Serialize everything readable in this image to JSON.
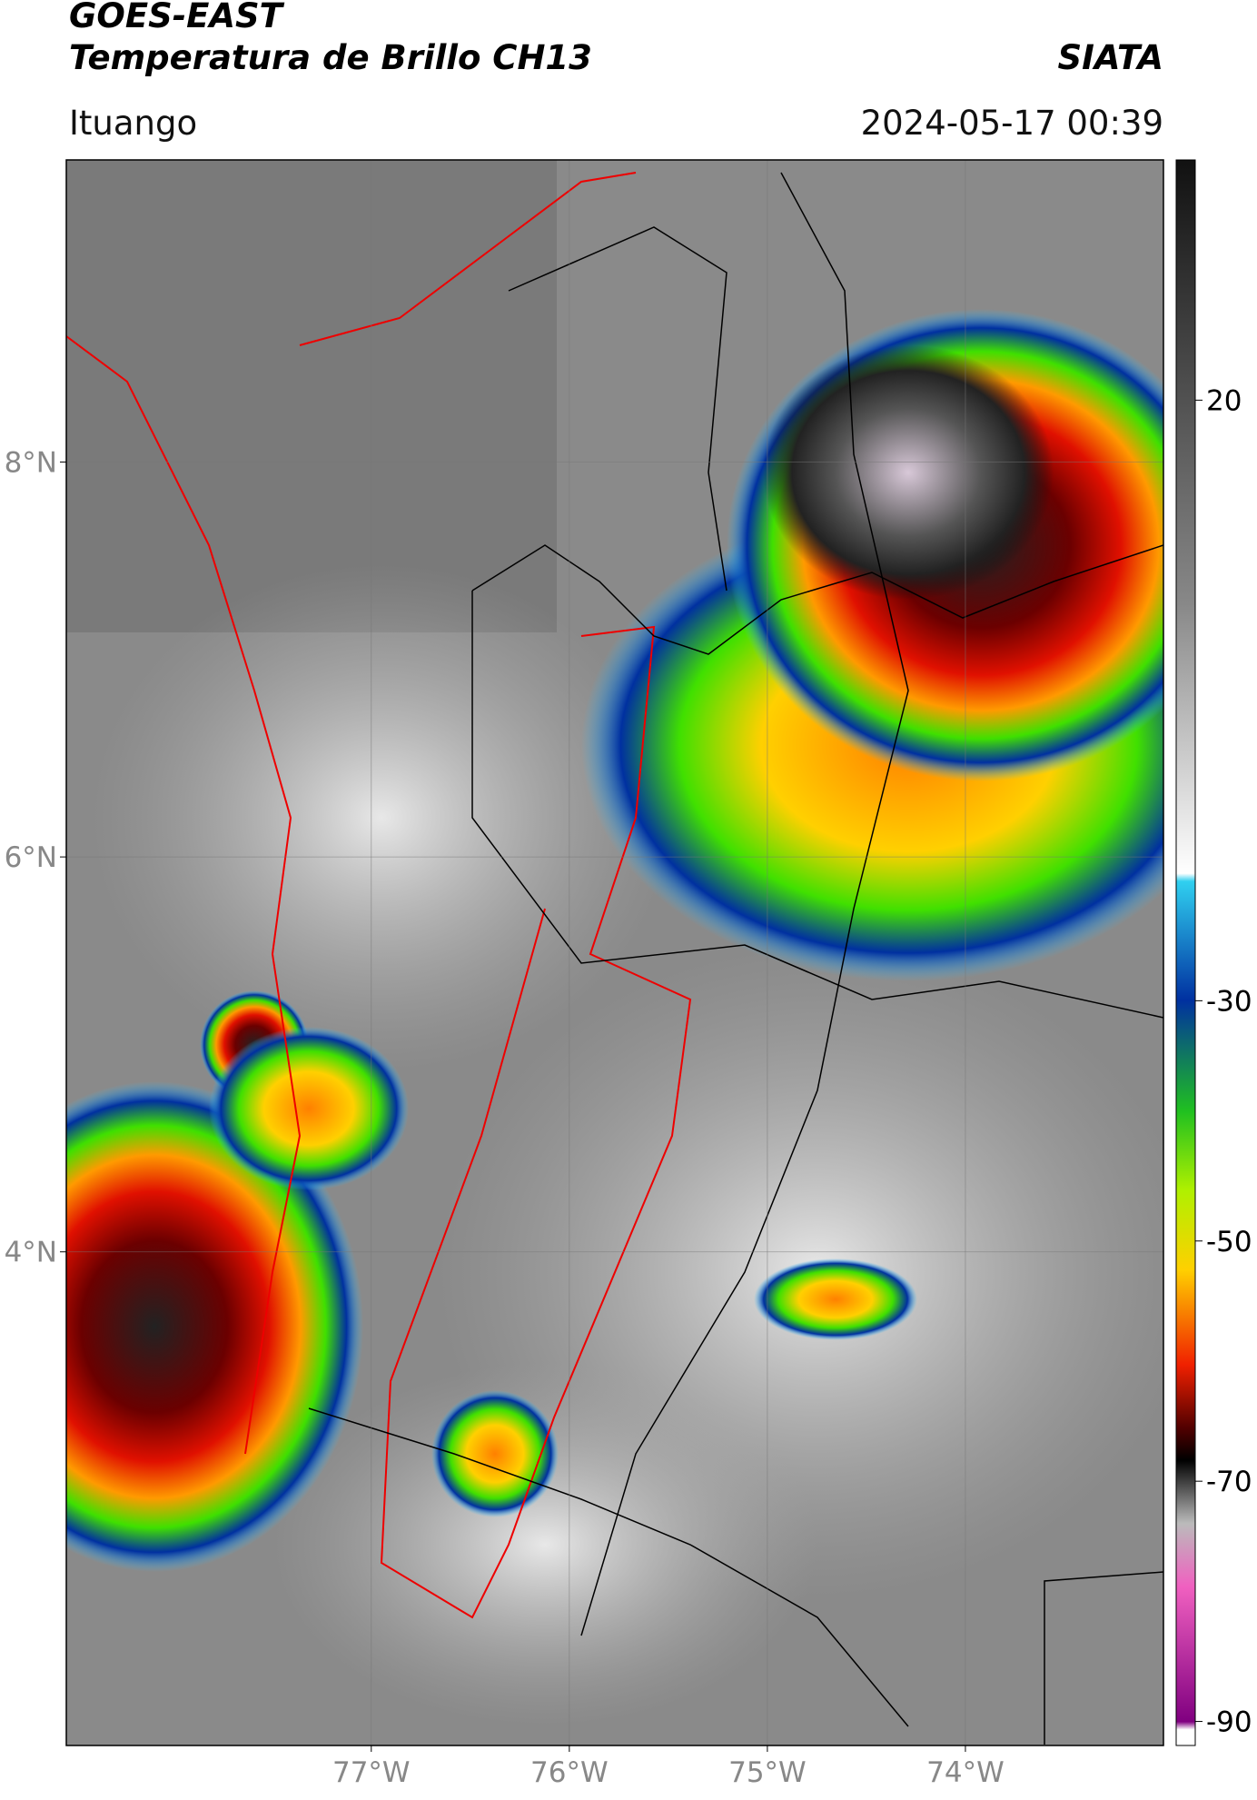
{
  "header": {
    "satellite": "GOES-EAST",
    "product": "Temperatura de Brillo CH13",
    "agency": "SIATA",
    "location": "Ituango",
    "timestamp": "2024-05-17 00:39"
  },
  "chart_data": {
    "type": "map",
    "xlim": [
      -78.54,
      -73.0
    ],
    "ylim": [
      1.5,
      9.53
    ],
    "xticks": [
      {
        "value": -77,
        "label": "77°W"
      },
      {
        "value": -76,
        "label": "76°W"
      },
      {
        "value": -75,
        "label": "75°W"
      },
      {
        "value": -74,
        "label": "74°W"
      }
    ],
    "yticks": [
      {
        "value": 8,
        "label": "8°N"
      },
      {
        "value": 6,
        "label": "6°N"
      },
      {
        "value": 4,
        "label": "4°N"
      }
    ],
    "grid": true,
    "colorbar": {
      "lim": [
        -92,
        40
      ],
      "ticks": [
        20,
        -30,
        -50,
        -70,
        -90
      ]
    }
  }
}
